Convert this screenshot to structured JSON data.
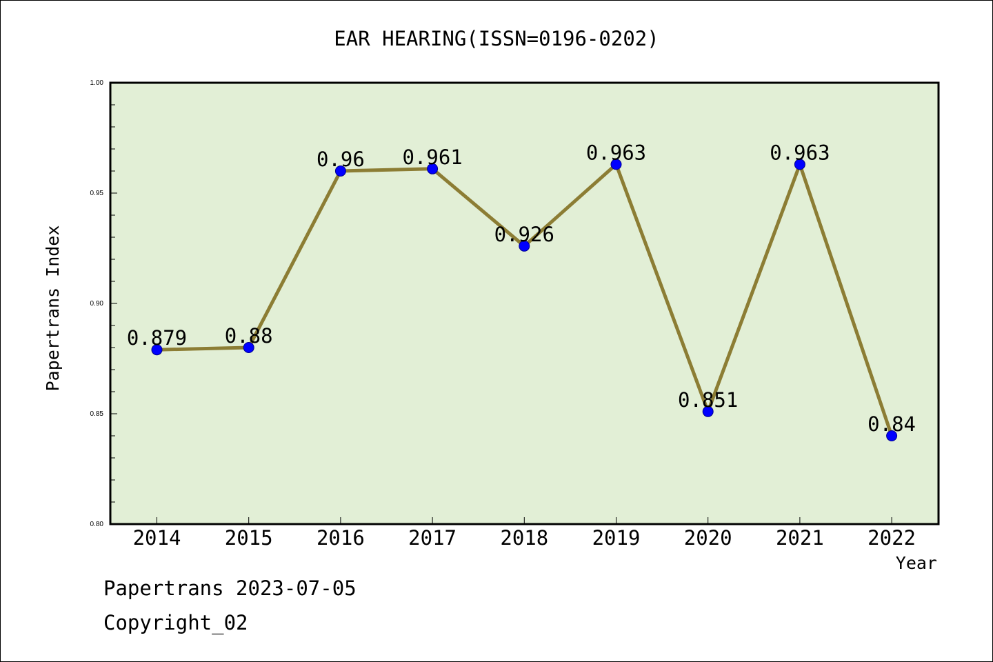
{
  "colors": {
    "plot_background": "#e2efd6",
    "line": "#8c7d34",
    "marker": "#0000ff",
    "axis": "#000000"
  },
  "chart_data": {
    "type": "line",
    "title": "EAR HEARING(ISSN=0196-0202)",
    "xlabel": "Year",
    "ylabel": "Papertrans Index",
    "categories": [
      "2014",
      "2015",
      "2016",
      "2017",
      "2018",
      "2019",
      "2020",
      "2021",
      "2022"
    ],
    "series": [
      {
        "values": [
          0.879,
          0.88,
          0.96,
          0.961,
          0.926,
          0.963,
          0.851,
          0.963,
          0.84
        ]
      }
    ],
    "data_labels": [
      "0.879",
      "0.88",
      "0.96",
      "0.961",
      "0.926",
      "0.963",
      "0.851",
      "0.963",
      "0.84"
    ],
    "ylim": [
      0.8,
      1.0
    ],
    "y_ticks": [
      "0.80",
      "0.85",
      "0.90",
      "0.95",
      "1.00"
    ],
    "grid": false,
    "legend": "none"
  },
  "footer": {
    "credit": "Papertrans 2023-07-05",
    "copyright": "Copyright_02"
  }
}
